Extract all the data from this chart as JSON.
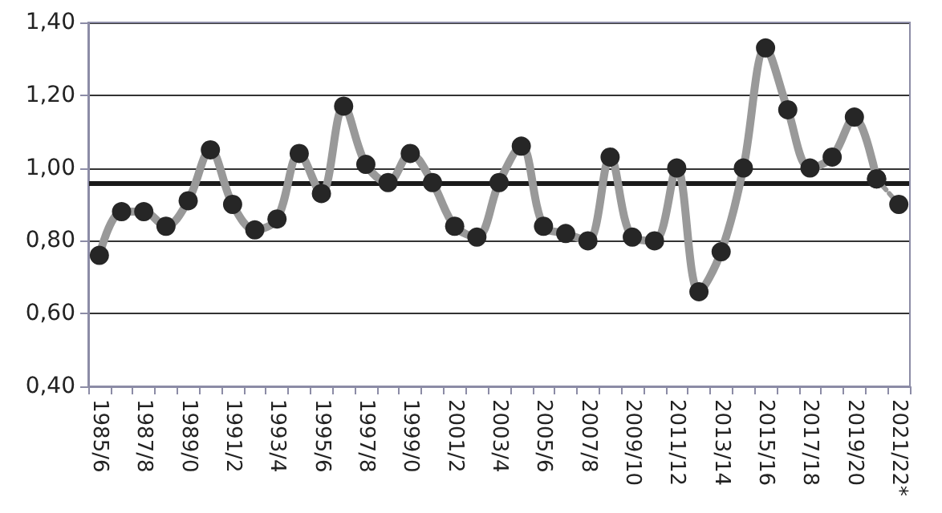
{
  "chart_data": {
    "type": "line",
    "categories": [
      "1985/6",
      null,
      "1987/8",
      null,
      "1989/0",
      null,
      "1991/2",
      null,
      "1993/4",
      null,
      "1995/6",
      null,
      "1997/8",
      null,
      "1999/0",
      null,
      "2001/2",
      null,
      "2003/4",
      null,
      "2005/6",
      null,
      "2007/8",
      null,
      "2009/10",
      null,
      "2011/12",
      null,
      "2013/14",
      null,
      "2015/16",
      null,
      "2017/18",
      null,
      "2019/20",
      null,
      "2021/22*"
    ],
    "series": [
      {
        "color": "#999999",
        "line_style": "solid",
        "values": [
          0.76,
          0.88,
          0.88,
          0.84,
          0.91,
          1.05,
          0.9,
          0.83,
          0.86,
          1.04,
          0.93,
          1.17,
          1.01,
          0.96,
          1.04,
          0.96,
          0.84,
          0.81,
          0.96,
          1.06,
          0.84,
          0.82,
          0.8,
          1.03,
          0.81,
          0.8,
          1.0,
          0.66,
          0.77,
          1.0,
          1.33,
          1.16,
          1.0,
          1.03,
          1.14,
          0.97,
          null
        ]
      },
      {
        "color": "#999999",
        "line_style": "dotted",
        "values": [
          null,
          null,
          null,
          null,
          null,
          null,
          null,
          null,
          null,
          null,
          null,
          null,
          null,
          null,
          null,
          null,
          null,
          null,
          null,
          null,
          null,
          null,
          null,
          null,
          null,
          null,
          null,
          null,
          null,
          null,
          null,
          null,
          null,
          null,
          null,
          0.97,
          0.9
        ]
      }
    ],
    "marker": "circle",
    "ylim": [
      0.4,
      1.4
    ],
    "yticks": [
      {
        "value": 0.4,
        "label": "0,40"
      },
      {
        "value": 0.6,
        "label": "0,60"
      },
      {
        "value": 0.8,
        "label": "0,80"
      },
      {
        "value": 1.0,
        "label": "1,00"
      },
      {
        "value": 1.2,
        "label": "1,20"
      },
      {
        "value": 1.4,
        "label": "1,40"
      }
    ],
    "grid": "y",
    "ref_lines": [
      {
        "axis": "y",
        "value": 0.96,
        "color": "#1a1a1a"
      }
    ]
  }
}
